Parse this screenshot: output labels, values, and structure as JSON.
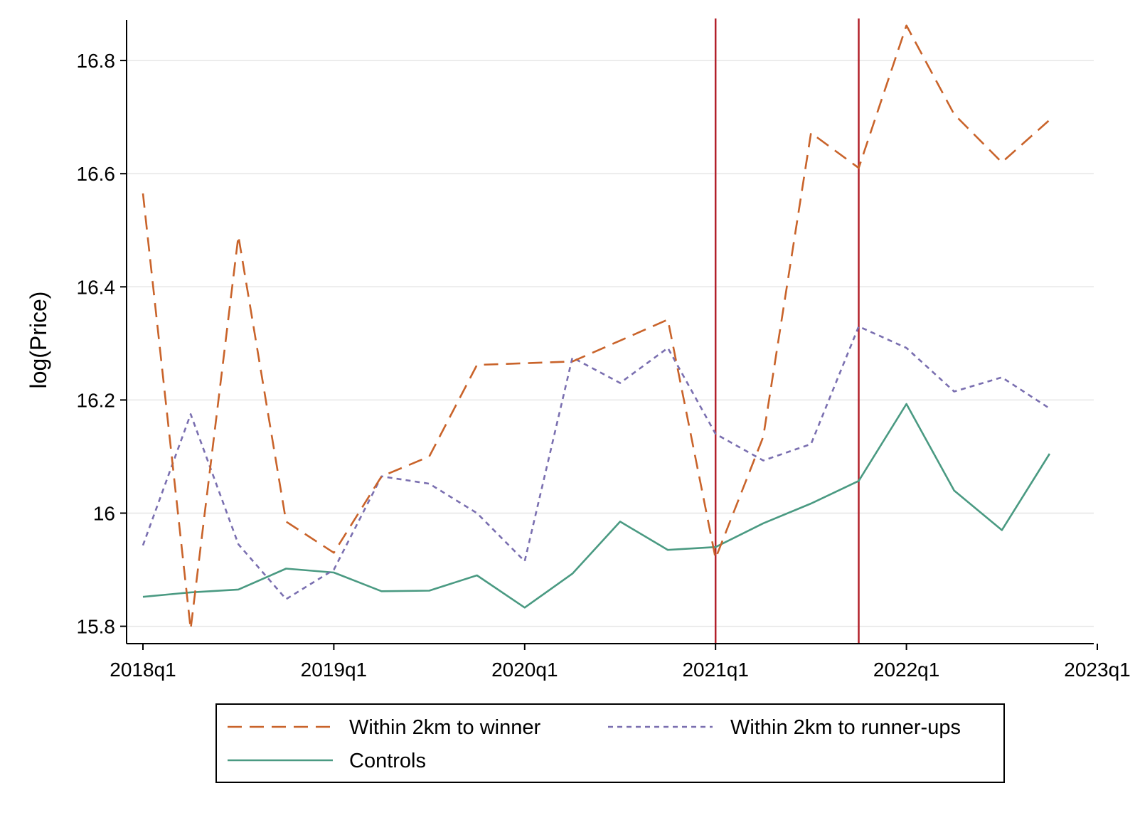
{
  "chart_data": {
    "type": "line",
    "title": "",
    "xlabel": "",
    "ylabel": "log(Price)",
    "x": [
      "2018q1",
      "2018q2",
      "2018q3",
      "2018q4",
      "2019q1",
      "2019q2",
      "2019q3",
      "2019q4",
      "2020q1",
      "2020q2",
      "2020q3",
      "2020q4",
      "2021q1",
      "2021q2",
      "2021q3",
      "2021q4",
      "2022q1",
      "2022q2",
      "2022q3",
      "2022q4"
    ],
    "xticks": [
      "2018q1",
      "2019q1",
      "2020q1",
      "2021q1",
      "2022q1",
      "2023q1"
    ],
    "xlim": [
      "2018q1",
      "2023q1"
    ],
    "yticks": [
      "15.8",
      "16",
      "16.2",
      "16.4",
      "16.6",
      "16.8"
    ],
    "ylim": [
      15.77,
      16.89
    ],
    "grid": "horizontal",
    "vlines": [
      "2021q1",
      "2021q4"
    ],
    "legend_position": "bottom",
    "series": [
      {
        "name": "Within 2km to winner",
        "style": "long-dash",
        "color": "#c9632a",
        "values": [
          16.565,
          15.795,
          16.49,
          15.985,
          15.93,
          16.065,
          16.1,
          16.262,
          16.265,
          16.268,
          16.305,
          16.342,
          15.92,
          16.135,
          16.672,
          16.61,
          16.862,
          16.705,
          16.62,
          16.695
        ]
      },
      {
        "name": "Within 2km to runner-ups",
        "style": "short-dash",
        "color": "#7a6fb0",
        "values": [
          15.943,
          16.175,
          15.945,
          15.848,
          15.9,
          16.065,
          16.052,
          16.0,
          15.915,
          16.275,
          16.23,
          16.292,
          16.14,
          16.093,
          16.122,
          16.33,
          16.292,
          16.215,
          16.24,
          16.185
        ]
      },
      {
        "name": "Controls",
        "style": "solid",
        "color": "#4a9a82",
        "values": [
          15.852,
          15.86,
          15.865,
          15.902,
          15.895,
          15.862,
          15.863,
          15.89,
          15.833,
          15.893,
          15.985,
          15.935,
          15.94,
          15.982,
          16.017,
          16.057,
          16.193,
          16.04,
          15.97,
          16.105
        ]
      }
    ],
    "vline_color": "#b2202a"
  }
}
